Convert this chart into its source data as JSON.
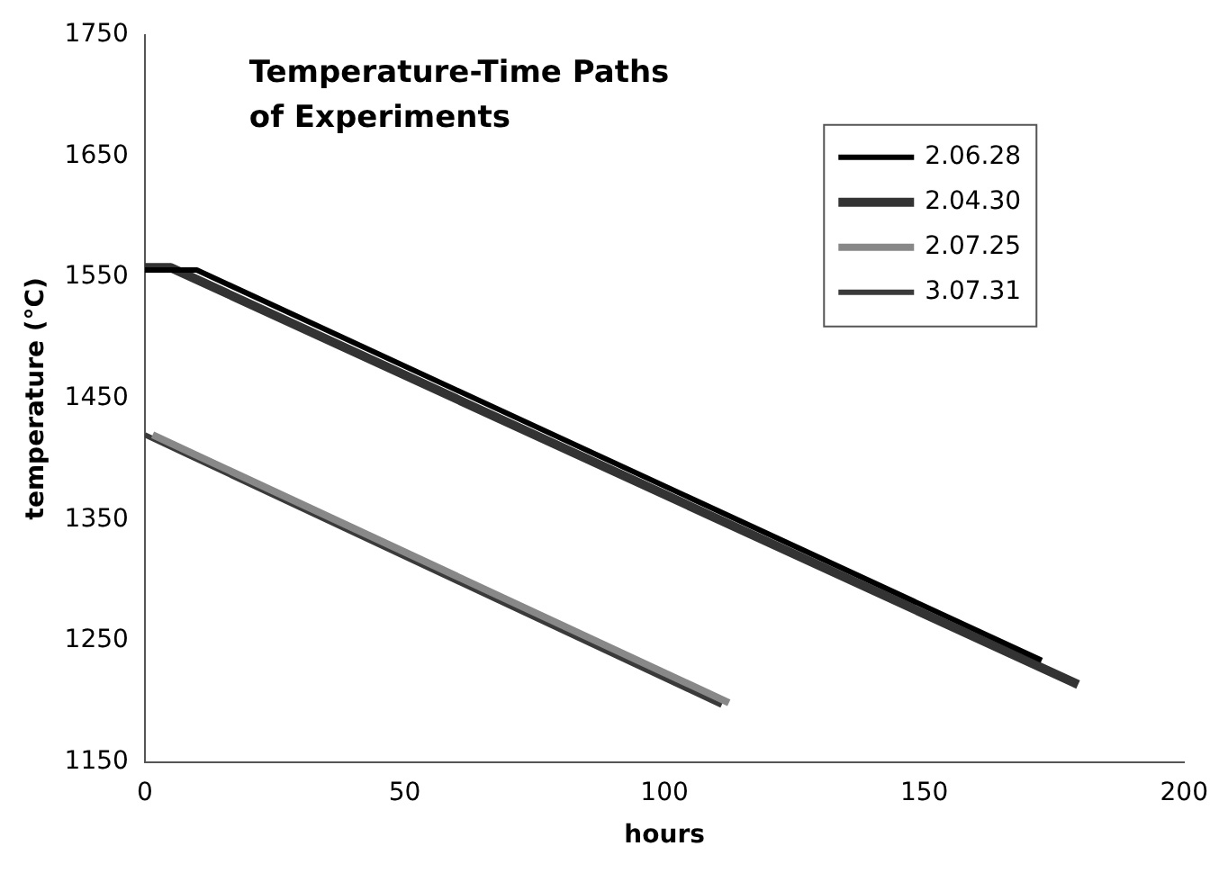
{
  "chart_data": {
    "type": "line",
    "title": "Temperature-Time Paths\nof Experiments",
    "xlabel": "hours",
    "ylabel": "temperature (°C)",
    "xlim": [
      0,
      200
    ],
    "xticks": [
      0,
      50,
      100,
      150,
      200
    ],
    "ylim": [
      1150,
      1750
    ],
    "yticks": [
      1150,
      1250,
      1350,
      1450,
      1550,
      1650,
      1750
    ],
    "grid": false,
    "legend": "top right",
    "marker": "none",
    "line_style": "solid",
    "series": [
      {
        "name": "2.06.28",
        "color": "#000000",
        "x": [
          0,
          10,
          172.6
        ],
        "values": [
          1556,
          1556,
          1234
        ]
      },
      {
        "name": "2.04.30",
        "color": "#333333",
        "x": [
          0,
          5,
          179.6
        ],
        "values": [
          1558,
          1558,
          1214
        ]
      },
      {
        "name": "2.07.25",
        "color": "#888888",
        "x": [
          1.5,
          112.4
        ],
        "values": [
          1420,
          1199
        ]
      },
      {
        "name": "3.07.31",
        "color": "#3a3a3a",
        "x": [
          0,
          111
        ],
        "values": [
          1420,
          1197
        ]
      }
    ]
  }
}
